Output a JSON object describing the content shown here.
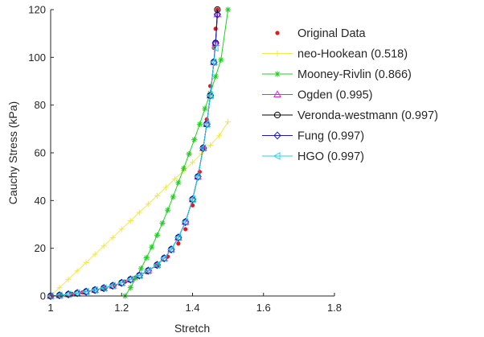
{
  "chart_data": {
    "type": "scatter",
    "title": "",
    "xlabel": "Stretch",
    "ylabel": "Cauchy Stress (kPa)",
    "xlim": [
      1,
      1.8
    ],
    "ylim": [
      0,
      120
    ],
    "xticks": [
      1,
      1.2,
      1.4,
      1.6,
      1.8
    ],
    "xtick_labels": [
      "1",
      "1.2",
      "1.4",
      "1.6",
      "1.8"
    ],
    "yticks": [
      0,
      20,
      40,
      60,
      80,
      100,
      120
    ],
    "ytick_labels": [
      "0",
      "20",
      "40",
      "60",
      "80",
      "100",
      "120"
    ],
    "grid": false,
    "legend_position": "top-right",
    "series": [
      {
        "name": "Original Data",
        "legend_label": "Original Data",
        "color": "#e41a1c",
        "marker": "dot",
        "line": false,
        "x": [
          1.0,
          1.03,
          1.06,
          1.09,
          1.12,
          1.15,
          1.18,
          1.21,
          1.24,
          1.27,
          1.3,
          1.33,
          1.36,
          1.38,
          1.4,
          1.42,
          1.43,
          1.44,
          1.45,
          1.46,
          1.465,
          1.47
        ],
        "y": [
          0,
          0.4,
          0.9,
          1.5,
          2.3,
          3.3,
          4.5,
          6.0,
          7.8,
          10.0,
          12.7,
          16.5,
          22.0,
          28.0,
          38.0,
          52.0,
          62.0,
          74.0,
          88.0,
          104.0,
          112.0,
          120.0
        ]
      },
      {
        "name": "neo-Hookean",
        "legend_label": "neo-Hookean (0.518)",
        "r2": "0.518",
        "color": "#f2e84b",
        "marker": "plus",
        "line": true,
        "x": [
          1.0,
          1.025,
          1.05,
          1.075,
          1.1,
          1.125,
          1.15,
          1.175,
          1.2,
          1.225,
          1.25,
          1.275,
          1.3,
          1.325,
          1.35,
          1.375,
          1.4,
          1.425,
          1.45,
          1.475,
          1.5
        ],
        "y": [
          0,
          3.5,
          7.0,
          10.5,
          14.0,
          17.5,
          21.0,
          24.5,
          28.0,
          31.5,
          35.0,
          38.5,
          42.0,
          45.5,
          49.0,
          52.5,
          56.0,
          59.6,
          63.2,
          67.1,
          73.0
        ]
      },
      {
        "name": "Mooney-Rivlin",
        "legend_label": "Mooney-Rivlin (0.866)",
        "r2": "0.866",
        "color": "#1fd11f",
        "marker": "asterisk",
        "line": true,
        "x": [
          1.21,
          1.225,
          1.24,
          1.255,
          1.27,
          1.285,
          1.3,
          1.315,
          1.33,
          1.345,
          1.36,
          1.375,
          1.39,
          1.405,
          1.42,
          1.435,
          1.45,
          1.465,
          1.48,
          1.5
        ],
        "y": [
          0,
          3.5,
          7.5,
          11.5,
          16.0,
          20.5,
          25.5,
          30.5,
          36.0,
          41.5,
          47.5,
          53.5,
          59.5,
          65.5,
          72.0,
          78.5,
          85.0,
          92.0,
          99.0,
          120.0
        ]
      },
      {
        "name": "Ogden",
        "legend_label": "Ogden (0.995)",
        "r2": "0.995",
        "color": "#e31ee3",
        "marker": "triangle",
        "line": true,
        "x": [
          1.0,
          1.025,
          1.05,
          1.075,
          1.1,
          1.125,
          1.15,
          1.175,
          1.2,
          1.225,
          1.25,
          1.275,
          1.3,
          1.32,
          1.34,
          1.36,
          1.38,
          1.4,
          1.415,
          1.43,
          1.44,
          1.45,
          1.46,
          1.465,
          1.47
        ],
        "y": [
          0,
          0.3,
          0.7,
          1.2,
          1.8,
          2.5,
          3.3,
          4.3,
          5.5,
          6.9,
          8.6,
          10.6,
          13.0,
          15.8,
          19.5,
          24.5,
          31.0,
          40.5,
          50.0,
          62.0,
          72.0,
          84.0,
          98.0,
          106.0,
          118.0
        ]
      },
      {
        "name": "Veronda-westmann",
        "legend_label": "Veronda-westmann (0.997)",
        "r2": "0.997",
        "color": "#000000",
        "marker": "circle",
        "line": true,
        "x": [
          1.0,
          1.025,
          1.05,
          1.075,
          1.1,
          1.125,
          1.15,
          1.175,
          1.2,
          1.225,
          1.25,
          1.275,
          1.3,
          1.32,
          1.34,
          1.36,
          1.38,
          1.4,
          1.415,
          1.43,
          1.44,
          1.45,
          1.46,
          1.465,
          1.47
        ],
        "y": [
          0,
          0.3,
          0.7,
          1.2,
          1.8,
          2.5,
          3.3,
          4.3,
          5.5,
          6.9,
          8.6,
          10.6,
          13.0,
          15.8,
          19.5,
          24.5,
          31.0,
          40.5,
          50.0,
          62.0,
          72.0,
          84.0,
          98.0,
          106.0,
          120.0
        ]
      },
      {
        "name": "Fung",
        "legend_label": "Fung (0.997)",
        "r2": "0.997",
        "color": "#1a1ab8",
        "marker": "diamond",
        "line": true,
        "x": [
          1.0,
          1.025,
          1.05,
          1.075,
          1.1,
          1.125,
          1.15,
          1.175,
          1.2,
          1.225,
          1.25,
          1.275,
          1.3,
          1.32,
          1.34,
          1.36,
          1.38,
          1.4,
          1.415,
          1.43,
          1.44,
          1.45,
          1.46,
          1.465,
          1.47
        ],
        "y": [
          0,
          0.3,
          0.7,
          1.2,
          1.8,
          2.5,
          3.3,
          4.3,
          5.5,
          6.9,
          8.6,
          10.6,
          13.0,
          15.8,
          19.5,
          24.5,
          31.0,
          40.5,
          50.0,
          62.0,
          72.0,
          84.0,
          98.0,
          106.0,
          118.0
        ]
      },
      {
        "name": "HGO",
        "legend_label": "HGO (0.997)",
        "r2": "0.997",
        "color": "#22d3ee",
        "marker": "triangle-left",
        "line": true,
        "x": [
          1.0,
          1.025,
          1.05,
          1.075,
          1.1,
          1.125,
          1.15,
          1.175,
          1.2,
          1.225,
          1.25,
          1.275,
          1.3,
          1.32,
          1.34,
          1.36,
          1.38,
          1.4,
          1.415,
          1.43,
          1.44,
          1.45,
          1.46,
          1.465
        ],
        "y": [
          0,
          0.3,
          0.7,
          1.2,
          1.8,
          2.5,
          3.3,
          4.3,
          5.5,
          6.9,
          8.6,
          10.6,
          13.0,
          15.8,
          19.5,
          24.5,
          31.0,
          40.5,
          50.0,
          62.0,
          72.0,
          84.0,
          98.0,
          104.0
        ]
      }
    ]
  }
}
